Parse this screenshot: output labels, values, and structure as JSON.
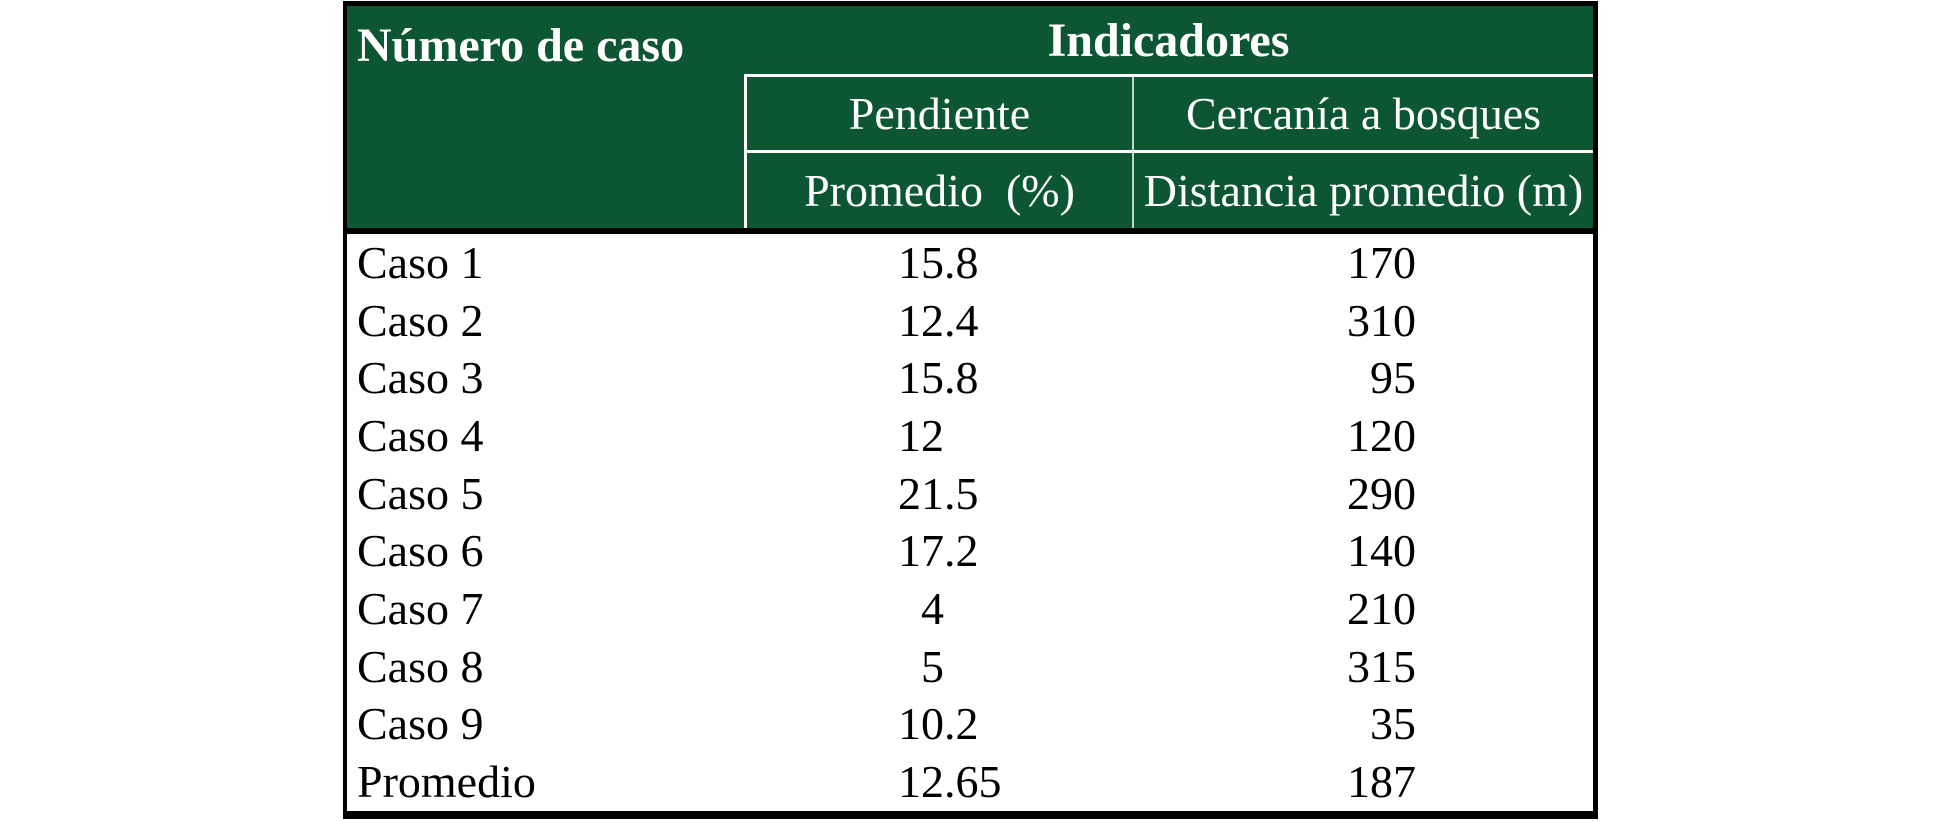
{
  "table": {
    "header": {
      "case_column_label": "Número de caso",
      "group_label": "Indicadores",
      "col_pendiente": {
        "label": "Pendiente",
        "measure_label": "Promedio  (%)"
      },
      "col_cercania": {
        "label": "Cercanía a bosques",
        "measure_label": "Distancia promedio (m)"
      }
    },
    "rows": [
      {
        "label": "Caso 1",
        "pendiente": "15.8",
        "distancia": "170"
      },
      {
        "label": "Caso 2",
        "pendiente": "12.4",
        "distancia": "310"
      },
      {
        "label": "Caso 3",
        "pendiente": "15.8",
        "distancia": "95"
      },
      {
        "label": "Caso 4",
        "pendiente": "12",
        "distancia": "120"
      },
      {
        "label": "Caso 5",
        "pendiente": "21.5",
        "distancia": "290"
      },
      {
        "label": "Caso 6",
        "pendiente": "17.2",
        "distancia": "140"
      },
      {
        "label": "Caso 7",
        "pendiente": "4",
        "distancia": "210"
      },
      {
        "label": "Caso 8",
        "pendiente": "5",
        "distancia": "315"
      },
      {
        "label": "Caso 9",
        "pendiente": "10.2",
        "distancia": "35"
      },
      {
        "label": "Promedio",
        "pendiente": "12.65",
        "distancia": "187"
      }
    ]
  },
  "colors": {
    "header_bg": "#0c5634",
    "header_text": "#ffffff",
    "body_text": "#000000",
    "border": "#000000",
    "divider_line": "#ffffff"
  },
  "chart_data": {
    "type": "table",
    "title": "",
    "columns": [
      "Número de caso",
      "Pendiente — Promedio (%)",
      "Cercanía a bosques — Distancia promedio (m)"
    ],
    "rows": [
      [
        "Caso 1",
        15.8,
        170
      ],
      [
        "Caso 2",
        12.4,
        310
      ],
      [
        "Caso 3",
        15.8,
        95
      ],
      [
        "Caso 4",
        12,
        120
      ],
      [
        "Caso 5",
        21.5,
        290
      ],
      [
        "Caso 6",
        17.2,
        140
      ],
      [
        "Caso 7",
        4,
        210
      ],
      [
        "Caso 8",
        5,
        315
      ],
      [
        "Caso 9",
        10.2,
        35
      ],
      [
        "Promedio",
        12.65,
        187
      ]
    ]
  }
}
